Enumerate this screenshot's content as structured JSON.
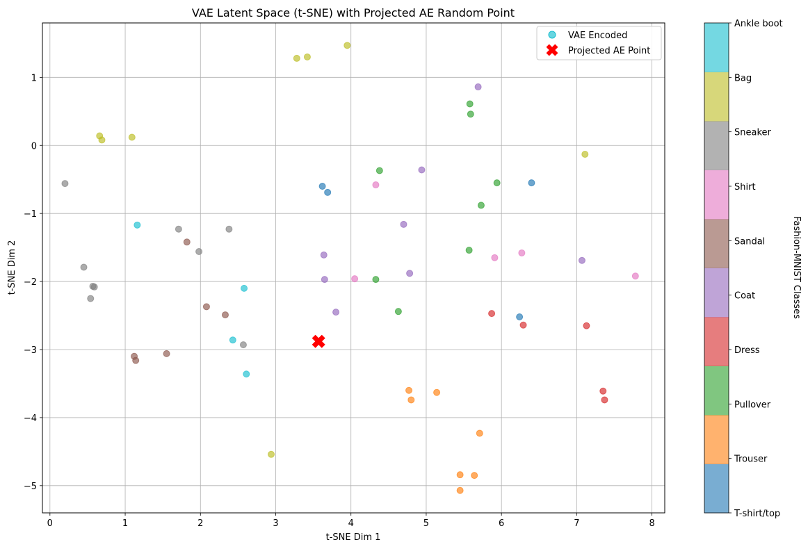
{
  "chart_data": {
    "type": "scatter",
    "title": "VAE Latent Space (t-SNE) with Projected AE Random Point",
    "xlabel": "t-SNE Dim 1",
    "ylabel": "t-SNE Dim 2",
    "xlim": [
      -0.1,
      8.17
    ],
    "ylim": [
      -5.4,
      1.8
    ],
    "xticks": [
      0,
      1,
      2,
      3,
      4,
      5,
      6,
      7,
      8
    ],
    "yticks": [
      -5,
      -4,
      -3,
      -2,
      -1,
      0,
      1
    ],
    "grid": true,
    "legend": {
      "position": "top-right",
      "entries": [
        {
          "label": "VAE Encoded",
          "marker": "circle",
          "color": "#17becf"
        },
        {
          "label": "Projected AE Point",
          "marker": "x",
          "color": "#ff0000"
        }
      ]
    },
    "colorbar": {
      "label": "Fashion-MNIST Classes",
      "classes": [
        {
          "label": "T-shirt/top",
          "color": "#1f77b4"
        },
        {
          "label": "Trouser",
          "color": "#ff7f0e"
        },
        {
          "label": "Pullover",
          "color": "#2ca02c"
        },
        {
          "label": "Dress",
          "color": "#d62728"
        },
        {
          "label": "Coat",
          "color": "#9467bd"
        },
        {
          "label": "Sandal",
          "color": "#8c564b"
        },
        {
          "label": "Shirt",
          "color": "#e377c2"
        },
        {
          "label": "Sneaker",
          "color": "#7f7f7f"
        },
        {
          "label": "Bag",
          "color": "#bcbd22"
        },
        {
          "label": "Ankle boot",
          "color": "#17becf"
        }
      ]
    },
    "series": [
      {
        "name": "VAE Encoded",
        "points": [
          {
            "x": 3.62,
            "y": -0.6,
            "c": 0
          },
          {
            "x": 3.69,
            "y": -0.69,
            "c": 0
          },
          {
            "x": 6.4,
            "y": -0.55,
            "c": 0
          },
          {
            "x": 6.24,
            "y": -2.52,
            "c": 0
          },
          {
            "x": 4.77,
            "y": -3.6,
            "c": 1
          },
          {
            "x": 4.8,
            "y": -3.74,
            "c": 1
          },
          {
            "x": 5.14,
            "y": -3.63,
            "c": 1
          },
          {
            "x": 5.71,
            "y": -4.23,
            "c": 1
          },
          {
            "x": 5.45,
            "y": -4.84,
            "c": 1
          },
          {
            "x": 5.64,
            "y": -4.85,
            "c": 1
          },
          {
            "x": 5.45,
            "y": -5.07,
            "c": 1
          },
          {
            "x": 5.58,
            "y": 0.61,
            "c": 2
          },
          {
            "x": 5.59,
            "y": 0.46,
            "c": 2
          },
          {
            "x": 4.38,
            "y": -0.37,
            "c": 2
          },
          {
            "x": 5.94,
            "y": -0.55,
            "c": 2
          },
          {
            "x": 5.73,
            "y": -0.88,
            "c": 2
          },
          {
            "x": 5.57,
            "y": -1.54,
            "c": 2
          },
          {
            "x": 4.33,
            "y": -1.97,
            "c": 2
          },
          {
            "x": 4.63,
            "y": -2.44,
            "c": 2
          },
          {
            "x": 5.87,
            "y": -2.47,
            "c": 3
          },
          {
            "x": 6.29,
            "y": -2.64,
            "c": 3
          },
          {
            "x": 7.13,
            "y": -2.65,
            "c": 3
          },
          {
            "x": 7.35,
            "y": -3.61,
            "c": 3
          },
          {
            "x": 7.37,
            "y": -3.74,
            "c": 3
          },
          {
            "x": 5.69,
            "y": 0.86,
            "c": 4
          },
          {
            "x": 4.94,
            "y": -0.36,
            "c": 4
          },
          {
            "x": 4.7,
            "y": -1.16,
            "c": 4
          },
          {
            "x": 3.64,
            "y": -1.61,
            "c": 4
          },
          {
            "x": 3.65,
            "y": -1.97,
            "c": 4
          },
          {
            "x": 4.78,
            "y": -1.88,
            "c": 4
          },
          {
            "x": 3.8,
            "y": -2.45,
            "c": 4
          },
          {
            "x": 7.07,
            "y": -1.69,
            "c": 4
          },
          {
            "x": 1.82,
            "y": -1.42,
            "c": 5
          },
          {
            "x": 2.08,
            "y": -2.37,
            "c": 5
          },
          {
            "x": 2.33,
            "y": -2.49,
            "c": 5
          },
          {
            "x": 1.12,
            "y": -3.1,
            "c": 5
          },
          {
            "x": 1.14,
            "y": -3.16,
            "c": 5
          },
          {
            "x": 1.55,
            "y": -3.06,
            "c": 5
          },
          {
            "x": 4.33,
            "y": -0.58,
            "c": 6
          },
          {
            "x": 4.05,
            "y": -1.96,
            "c": 6
          },
          {
            "x": 5.91,
            "y": -1.65,
            "c": 6
          },
          {
            "x": 6.27,
            "y": -1.58,
            "c": 6
          },
          {
            "x": 7.78,
            "y": -1.92,
            "c": 6
          },
          {
            "x": 0.2,
            "y": -0.56,
            "c": 7
          },
          {
            "x": 1.71,
            "y": -1.23,
            "c": 7
          },
          {
            "x": 2.38,
            "y": -1.23,
            "c": 7
          },
          {
            "x": 1.98,
            "y": -1.56,
            "c": 7
          },
          {
            "x": 0.45,
            "y": -1.79,
            "c": 7
          },
          {
            "x": 0.57,
            "y": -2.07,
            "c": 7
          },
          {
            "x": 0.59,
            "y": -2.08,
            "c": 7
          },
          {
            "x": 0.54,
            "y": -2.25,
            "c": 7
          },
          {
            "x": 2.57,
            "y": -2.93,
            "c": 7
          },
          {
            "x": 3.95,
            "y": 1.47,
            "c": 8
          },
          {
            "x": 3.42,
            "y": 1.3,
            "c": 8
          },
          {
            "x": 3.28,
            "y": 1.28,
            "c": 8
          },
          {
            "x": 0.66,
            "y": 0.14,
            "c": 8
          },
          {
            "x": 0.69,
            "y": 0.08,
            "c": 8
          },
          {
            "x": 1.09,
            "y": 0.12,
            "c": 8
          },
          {
            "x": 7.11,
            "y": -0.13,
            "c": 8
          },
          {
            "x": 2.94,
            "y": -4.54,
            "c": 8
          },
          {
            "x": 1.16,
            "y": -1.17,
            "c": 9
          },
          {
            "x": 2.58,
            "y": -2.1,
            "c": 9
          },
          {
            "x": 2.43,
            "y": -2.86,
            "c": 9
          },
          {
            "x": 2.61,
            "y": -3.36,
            "c": 9
          }
        ]
      },
      {
        "name": "Projected AE Point",
        "points": [
          {
            "x": 3.57,
            "y": -2.88
          }
        ]
      }
    ]
  }
}
